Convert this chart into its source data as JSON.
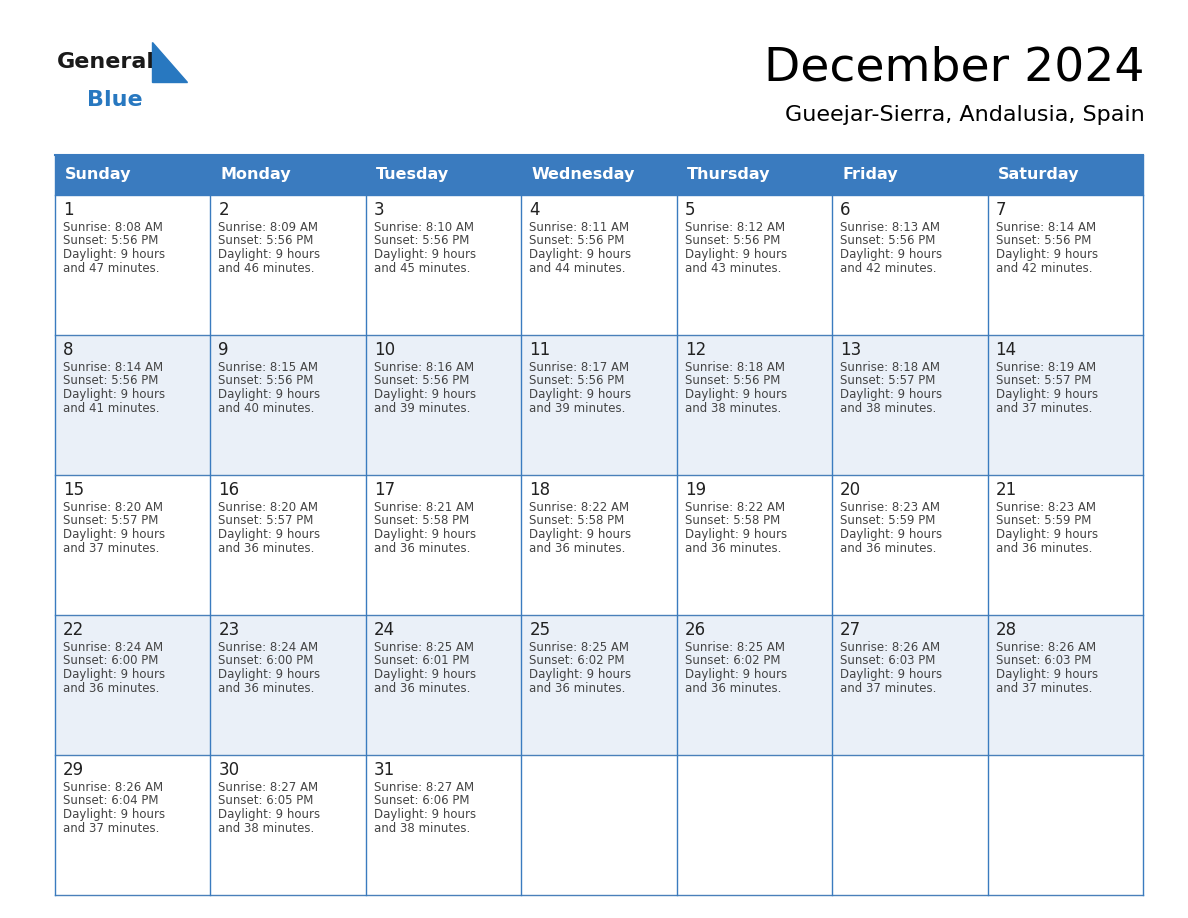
{
  "title": "December 2024",
  "subtitle": "Gueejar-Sierra, Andalusia, Spain",
  "days_of_week": [
    "Sunday",
    "Monday",
    "Tuesday",
    "Wednesday",
    "Thursday",
    "Friday",
    "Saturday"
  ],
  "header_bg": "#3a7bbf",
  "header_text": "#ffffff",
  "cell_bg_odd": "#ffffff",
  "cell_bg_even": "#eaf0f8",
  "border_color": "#3a7bbf",
  "row_border_color": "#4a80ba",
  "text_color": "#444444",
  "day_num_color": "#222222",
  "logo_general_color": "#1a1a1a",
  "logo_blue_color": "#2878c0",
  "calendar_data": [
    [
      {
        "day": 1,
        "sunrise": "8:08 AM",
        "sunset": "5:56 PM",
        "daylight_h": "9 hours",
        "daylight_m": "and 47 minutes."
      },
      {
        "day": 2,
        "sunrise": "8:09 AM",
        "sunset": "5:56 PM",
        "daylight_h": "9 hours",
        "daylight_m": "and 46 minutes."
      },
      {
        "day": 3,
        "sunrise": "8:10 AM",
        "sunset": "5:56 PM",
        "daylight_h": "9 hours",
        "daylight_m": "and 45 minutes."
      },
      {
        "day": 4,
        "sunrise": "8:11 AM",
        "sunset": "5:56 PM",
        "daylight_h": "9 hours",
        "daylight_m": "and 44 minutes."
      },
      {
        "day": 5,
        "sunrise": "8:12 AM",
        "sunset": "5:56 PM",
        "daylight_h": "9 hours",
        "daylight_m": "and 43 minutes."
      },
      {
        "day": 6,
        "sunrise": "8:13 AM",
        "sunset": "5:56 PM",
        "daylight_h": "9 hours",
        "daylight_m": "and 42 minutes."
      },
      {
        "day": 7,
        "sunrise": "8:14 AM",
        "sunset": "5:56 PM",
        "daylight_h": "9 hours",
        "daylight_m": "and 42 minutes."
      }
    ],
    [
      {
        "day": 8,
        "sunrise": "8:14 AM",
        "sunset": "5:56 PM",
        "daylight_h": "9 hours",
        "daylight_m": "and 41 minutes."
      },
      {
        "day": 9,
        "sunrise": "8:15 AM",
        "sunset": "5:56 PM",
        "daylight_h": "9 hours",
        "daylight_m": "and 40 minutes."
      },
      {
        "day": 10,
        "sunrise": "8:16 AM",
        "sunset": "5:56 PM",
        "daylight_h": "9 hours",
        "daylight_m": "and 39 minutes."
      },
      {
        "day": 11,
        "sunrise": "8:17 AM",
        "sunset": "5:56 PM",
        "daylight_h": "9 hours",
        "daylight_m": "and 39 minutes."
      },
      {
        "day": 12,
        "sunrise": "8:18 AM",
        "sunset": "5:56 PM",
        "daylight_h": "9 hours",
        "daylight_m": "and 38 minutes."
      },
      {
        "day": 13,
        "sunrise": "8:18 AM",
        "sunset": "5:57 PM",
        "daylight_h": "9 hours",
        "daylight_m": "and 38 minutes."
      },
      {
        "day": 14,
        "sunrise": "8:19 AM",
        "sunset": "5:57 PM",
        "daylight_h": "9 hours",
        "daylight_m": "and 37 minutes."
      }
    ],
    [
      {
        "day": 15,
        "sunrise": "8:20 AM",
        "sunset": "5:57 PM",
        "daylight_h": "9 hours",
        "daylight_m": "and 37 minutes."
      },
      {
        "day": 16,
        "sunrise": "8:20 AM",
        "sunset": "5:57 PM",
        "daylight_h": "9 hours",
        "daylight_m": "and 36 minutes."
      },
      {
        "day": 17,
        "sunrise": "8:21 AM",
        "sunset": "5:58 PM",
        "daylight_h": "9 hours",
        "daylight_m": "and 36 minutes."
      },
      {
        "day": 18,
        "sunrise": "8:22 AM",
        "sunset": "5:58 PM",
        "daylight_h": "9 hours",
        "daylight_m": "and 36 minutes."
      },
      {
        "day": 19,
        "sunrise": "8:22 AM",
        "sunset": "5:58 PM",
        "daylight_h": "9 hours",
        "daylight_m": "and 36 minutes."
      },
      {
        "day": 20,
        "sunrise": "8:23 AM",
        "sunset": "5:59 PM",
        "daylight_h": "9 hours",
        "daylight_m": "and 36 minutes."
      },
      {
        "day": 21,
        "sunrise": "8:23 AM",
        "sunset": "5:59 PM",
        "daylight_h": "9 hours",
        "daylight_m": "and 36 minutes."
      }
    ],
    [
      {
        "day": 22,
        "sunrise": "8:24 AM",
        "sunset": "6:00 PM",
        "daylight_h": "9 hours",
        "daylight_m": "and 36 minutes."
      },
      {
        "day": 23,
        "sunrise": "8:24 AM",
        "sunset": "6:00 PM",
        "daylight_h": "9 hours",
        "daylight_m": "and 36 minutes."
      },
      {
        "day": 24,
        "sunrise": "8:25 AM",
        "sunset": "6:01 PM",
        "daylight_h": "9 hours",
        "daylight_m": "and 36 minutes."
      },
      {
        "day": 25,
        "sunrise": "8:25 AM",
        "sunset": "6:02 PM",
        "daylight_h": "9 hours",
        "daylight_m": "and 36 minutes."
      },
      {
        "day": 26,
        "sunrise": "8:25 AM",
        "sunset": "6:02 PM",
        "daylight_h": "9 hours",
        "daylight_m": "and 36 minutes."
      },
      {
        "day": 27,
        "sunrise": "8:26 AM",
        "sunset": "6:03 PM",
        "daylight_h": "9 hours",
        "daylight_m": "and 37 minutes."
      },
      {
        "day": 28,
        "sunrise": "8:26 AM",
        "sunset": "6:03 PM",
        "daylight_h": "9 hours",
        "daylight_m": "and 37 minutes."
      }
    ],
    [
      {
        "day": 29,
        "sunrise": "8:26 AM",
        "sunset": "6:04 PM",
        "daylight_h": "9 hours",
        "daylight_m": "and 37 minutes."
      },
      {
        "day": 30,
        "sunrise": "8:27 AM",
        "sunset": "6:05 PM",
        "daylight_h": "9 hours",
        "daylight_m": "and 38 minutes."
      },
      {
        "day": 31,
        "sunrise": "8:27 AM",
        "sunset": "6:06 PM",
        "daylight_h": "9 hours",
        "daylight_m": "and 38 minutes."
      },
      null,
      null,
      null,
      null
    ]
  ]
}
